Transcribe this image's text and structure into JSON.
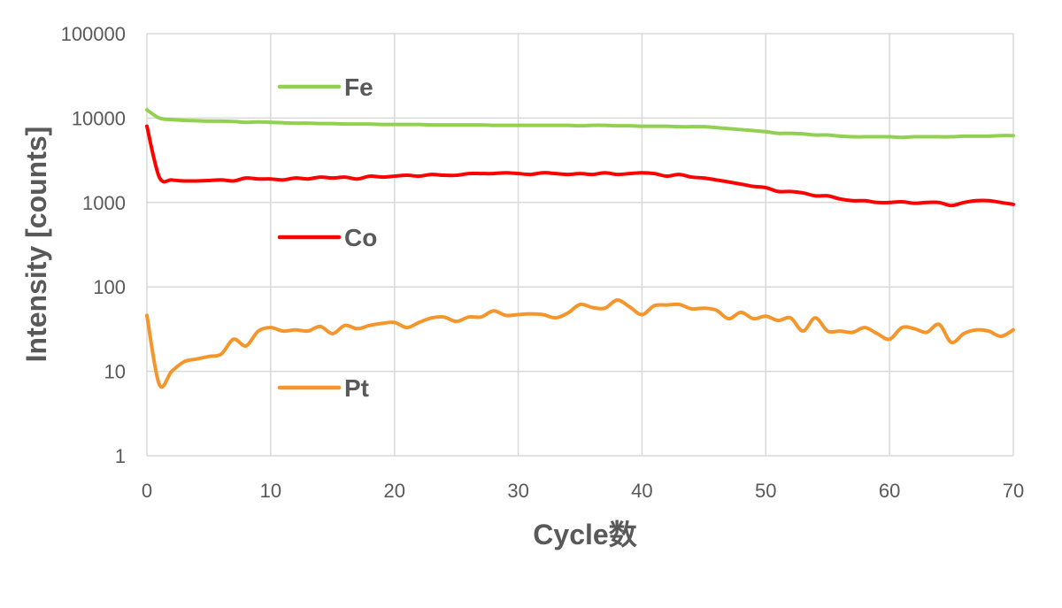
{
  "chart_data": {
    "type": "line",
    "title": "",
    "xlabel": "Cycle数",
    "ylabel": "Intensity [counts]",
    "y_scale": "log",
    "xlim": [
      0,
      70
    ],
    "ylim": [
      1,
      100000
    ],
    "x_ticks": [
      "0",
      "10",
      "20",
      "30",
      "40",
      "50",
      "60",
      "70"
    ],
    "y_ticks": [
      "1",
      "10",
      "100",
      "1000",
      "10000",
      "100000"
    ],
    "grid": true,
    "legend_placement": "inline labels inside plot, left",
    "x": [
      0,
      1,
      2,
      3,
      4,
      5,
      6,
      7,
      8,
      9,
      10,
      11,
      12,
      13,
      14,
      15,
      16,
      17,
      18,
      19,
      20,
      21,
      22,
      23,
      24,
      25,
      26,
      27,
      28,
      29,
      30,
      31,
      32,
      33,
      34,
      35,
      36,
      37,
      38,
      39,
      40,
      41,
      42,
      43,
      44,
      45,
      46,
      47,
      48,
      49,
      50,
      51,
      52,
      53,
      54,
      55,
      56,
      57,
      58,
      59,
      60,
      61,
      62,
      63,
      64,
      65,
      66,
      67,
      68,
      69,
      70
    ],
    "series": [
      {
        "name": "Fe",
        "color": "#92D050",
        "values": [
          12500,
          10000,
          9600,
          9400,
          9300,
          9200,
          9200,
          9100,
          8900,
          9000,
          8900,
          8800,
          8700,
          8700,
          8600,
          8600,
          8500,
          8500,
          8500,
          8400,
          8400,
          8400,
          8400,
          8300,
          8300,
          8300,
          8300,
          8300,
          8200,
          8200,
          8200,
          8200,
          8200,
          8200,
          8200,
          8100,
          8200,
          8200,
          8100,
          8100,
          8000,
          8000,
          8000,
          7900,
          7900,
          7900,
          7700,
          7500,
          7300,
          7100,
          6900,
          6600,
          6600,
          6500,
          6300,
          6300,
          6100,
          6000,
          6000,
          6000,
          6000,
          5900,
          6000,
          6000,
          6000,
          6000,
          6100,
          6100,
          6100,
          6200,
          6200
        ]
      },
      {
        "name": "Co",
        "color": "#FF0000",
        "values": [
          8000,
          2000,
          1850,
          1800,
          1800,
          1820,
          1850,
          1800,
          1950,
          1900,
          1900,
          1850,
          1950,
          1900,
          2000,
          1950,
          2000,
          1900,
          2050,
          2000,
          2050,
          2100,
          2050,
          2150,
          2100,
          2100,
          2200,
          2200,
          2200,
          2250,
          2200,
          2150,
          2250,
          2200,
          2150,
          2200,
          2150,
          2250,
          2150,
          2200,
          2250,
          2200,
          2050,
          2150,
          2000,
          1950,
          1850,
          1750,
          1650,
          1550,
          1500,
          1350,
          1350,
          1300,
          1200,
          1200,
          1100,
          1050,
          1050,
          1000,
          1000,
          1020,
          980,
          1000,
          1000,
          920,
          1000,
          1050,
          1050,
          1000,
          950
        ]
      },
      {
        "name": "Pt",
        "color": "#F4962C",
        "values": [
          46,
          7,
          10,
          13,
          14,
          15,
          16,
          24,
          20,
          30,
          33,
          30,
          31,
          30,
          34,
          28,
          35,
          32,
          35,
          37,
          38,
          33,
          38,
          43,
          44,
          39,
          44,
          44,
          52,
          46,
          47,
          48,
          47,
          43,
          49,
          62,
          57,
          56,
          70,
          58,
          47,
          60,
          61,
          62,
          55,
          56,
          53,
          42,
          50,
          42,
          45,
          40,
          43,
          30,
          43,
          30,
          30,
          29,
          33,
          28,
          24,
          33,
          32,
          29,
          36,
          22,
          28,
          31,
          30,
          26,
          31
        ]
      }
    ]
  }
}
